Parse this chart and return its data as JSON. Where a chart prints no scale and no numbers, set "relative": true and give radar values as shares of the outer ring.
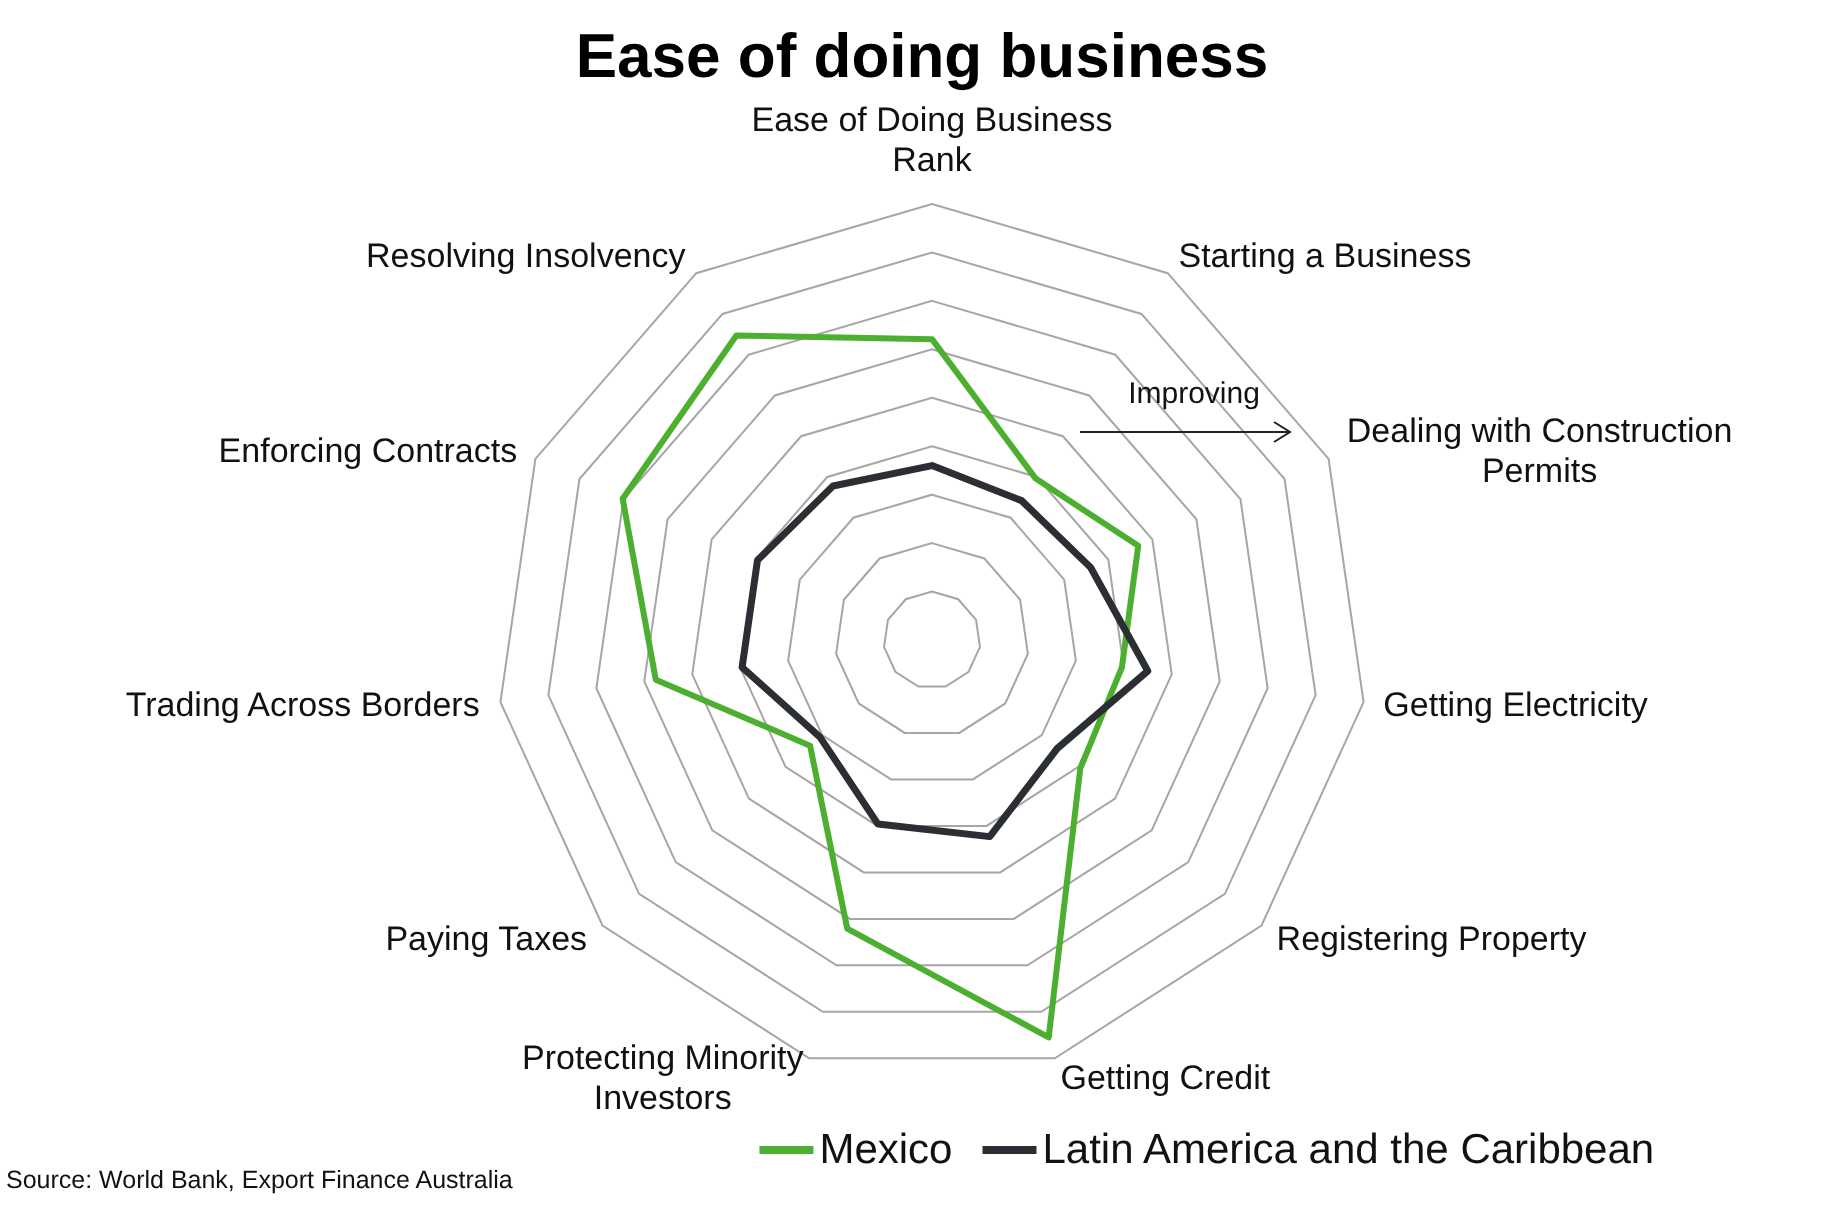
{
  "chart_data": {
    "type": "radar",
    "title": "Ease of doing business",
    "categories": [
      "Ease of Doing Business Rank",
      "Starting a Business",
      "Dealing with Construction Permits",
      "Getting Electricity",
      "Registering Property",
      "Getting Credit",
      "Protecting Minority Investors",
      "Paying Taxes",
      "Trading Across Borders",
      "Enforcing Contracts",
      "Resolving Insolvency"
    ],
    "series": [
      {
        "name": "Mexico",
        "color": "#4caf2f",
        "values": [
          0.69,
          0.44,
          0.52,
          0.44,
          0.45,
          0.95,
          0.69,
          0.37,
          0.64,
          0.78,
          0.83
        ]
      },
      {
        "name": "Latin America and the Caribbean",
        "color": "#2b2f33",
        "values": [
          0.4,
          0.38,
          0.4,
          0.5,
          0.38,
          0.47,
          0.44,
          0.34,
          0.44,
          0.44,
          0.42
        ]
      }
    ],
    "relative": true,
    "grid": true,
    "legend": "bottom",
    "annotations": [
      "Improving",
      "Source: World Bank, Export Finance Australia"
    ]
  }
}
